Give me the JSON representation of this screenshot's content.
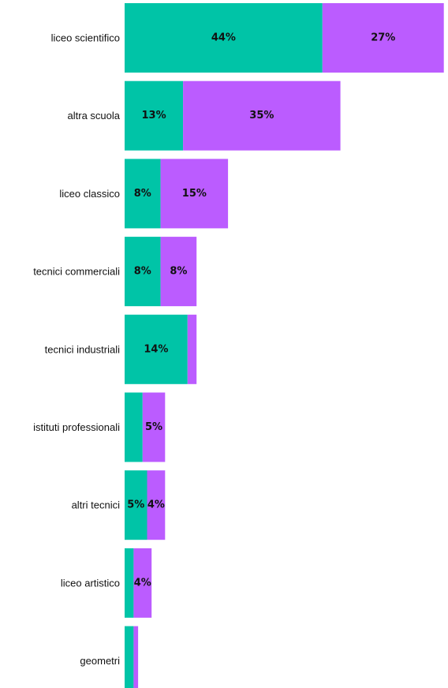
{
  "chart_data": {
    "type": "bar",
    "orientation": "horizontal",
    "stacked": true,
    "title": "",
    "xlabel": "",
    "ylabel": "",
    "grid": false,
    "legend": "none",
    "categories": [
      "liceo scientifico",
      "altra scuola",
      "liceo classico",
      "tecnici commerciali",
      "tecnici industriali",
      "istituti professionali",
      "altri tecnici",
      "liceo artistico",
      "geometri"
    ],
    "series": [
      {
        "color": "#00C4A7",
        "values": [
          44,
          13,
          8,
          8,
          14,
          4,
          5,
          2,
          2
        ],
        "labels": [
          "44%",
          "13%",
          "8%",
          "8%",
          "14%",
          "",
          "5%",
          "",
          ""
        ]
      },
      {
        "color": "#BB5CFF",
        "values": [
          27,
          35,
          15,
          8,
          2,
          5,
          4,
          4,
          1
        ],
        "labels": [
          "27%",
          "35%",
          "15%",
          "8%",
          "",
          "5%",
          "4%",
          "4%",
          ""
        ]
      }
    ]
  }
}
